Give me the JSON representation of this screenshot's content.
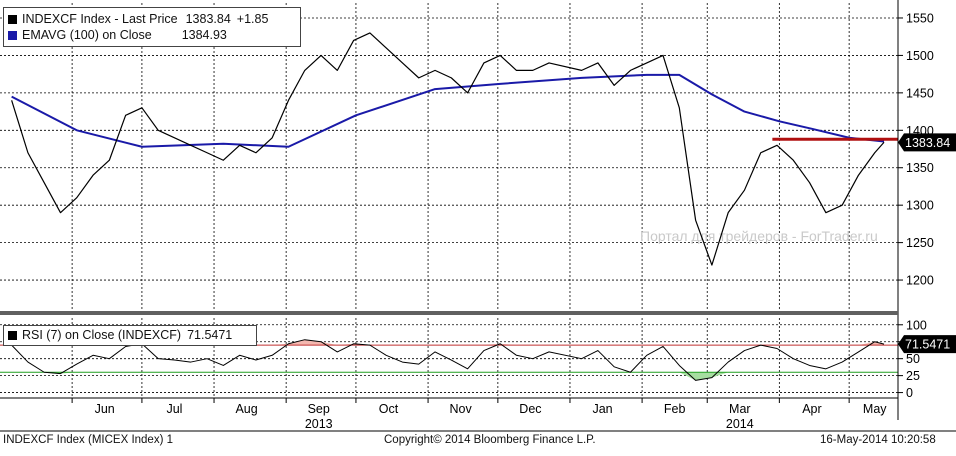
{
  "chart_data": [
    {
      "type": "line",
      "panel": "price",
      "legend": [
        {
          "swatch_color": "#000000",
          "text": "INDEXCF Index - Last Price",
          "value": "1383.84",
          "change": "+1.85"
        },
        {
          "swatch_color": "#1a1aa8",
          "text": "EMAVG (100) on Close",
          "value": "1384.93"
        }
      ],
      "ylim": [
        1160,
        1570
      ],
      "y_ticks": [
        1200,
        1250,
        1300,
        1350,
        1400,
        1450,
        1500,
        1550
      ],
      "last_price_label": "1383.84",
      "resistance_level": 1388,
      "colors": {
        "price": "#000000",
        "ema": "#1a1aa8",
        "resistance": "#b01010",
        "label_bg": "#000000"
      },
      "series": [
        {
          "role": "price",
          "x": [
            "2013-05-06",
            "2013-05-13",
            "2013-05-20",
            "2013-05-27",
            "2013-06-03",
            "2013-06-10",
            "2013-06-17",
            "2013-06-24",
            "2013-07-01",
            "2013-07-08",
            "2013-07-15",
            "2013-07-22",
            "2013-07-29",
            "2013-08-05",
            "2013-08-12",
            "2013-08-19",
            "2013-08-26",
            "2013-09-02",
            "2013-09-09",
            "2013-09-16",
            "2013-09-23",
            "2013-09-30",
            "2013-10-07",
            "2013-10-14",
            "2013-10-21",
            "2013-10-28",
            "2013-11-04",
            "2013-11-11",
            "2013-11-18",
            "2013-11-25",
            "2013-12-02",
            "2013-12-09",
            "2013-12-16",
            "2013-12-23",
            "2014-01-06",
            "2014-01-13",
            "2014-01-20",
            "2014-01-27",
            "2014-02-03",
            "2014-02-10",
            "2014-02-17",
            "2014-02-24",
            "2014-03-03",
            "2014-03-10",
            "2014-03-17",
            "2014-03-24",
            "2014-03-31",
            "2014-04-07",
            "2014-04-14",
            "2014-04-21",
            "2014-04-28",
            "2014-05-05",
            "2014-05-12",
            "2014-05-16"
          ],
          "values": [
            1440,
            1370,
            1330,
            1290,
            1310,
            1340,
            1360,
            1420,
            1430,
            1400,
            1390,
            1380,
            1370,
            1360,
            1380,
            1370,
            1390,
            1440,
            1480,
            1500,
            1480,
            1520,
            1530,
            1510,
            1490,
            1470,
            1480,
            1470,
            1450,
            1490,
            1500,
            1480,
            1480,
            1490,
            1480,
            1490,
            1460,
            1480,
            1490,
            1500,
            1430,
            1280,
            1220,
            1290,
            1320,
            1370,
            1380,
            1360,
            1330,
            1290,
            1300,
            1340,
            1370,
            1384
          ]
        },
        {
          "role": "ema",
          "x": [
            "2013-05-06",
            "2013-06-03",
            "2013-07-01",
            "2013-08-05",
            "2013-09-02",
            "2013-10-01",
            "2013-11-04",
            "2013-12-02",
            "2014-01-06",
            "2014-02-03",
            "2014-02-17",
            "2014-03-03",
            "2014-03-17",
            "2014-04-01",
            "2014-04-15",
            "2014-05-01",
            "2014-05-16"
          ],
          "values": [
            1445,
            1400,
            1378,
            1382,
            1378,
            1420,
            1455,
            1462,
            1470,
            1474,
            1474,
            1448,
            1425,
            1412,
            1402,
            1390,
            1385
          ]
        }
      ]
    },
    {
      "type": "line",
      "panel": "rsi",
      "legend": [
        {
          "swatch_color": "#000000",
          "text": "RSI (7) on Close (INDEXCF)",
          "value": "71.5471"
        }
      ],
      "ylim": [
        -8,
        110
      ],
      "y_ticks": [
        0,
        25,
        50,
        75,
        100
      ],
      "overbought": 70,
      "oversold": 30,
      "last_value_label": "71.5471",
      "colors": {
        "rsi": "#000000",
        "overbought": "#c03030",
        "oversold": "#20a020",
        "overbought_fill": "#f4b8b0",
        "oversold_fill": "#a6dea0"
      },
      "series": [
        {
          "role": "rsi",
          "x": [
            "2013-05-06",
            "2013-05-13",
            "2013-05-20",
            "2013-05-27",
            "2013-06-03",
            "2013-06-10",
            "2013-06-17",
            "2013-06-24",
            "2013-07-01",
            "2013-07-08",
            "2013-07-15",
            "2013-07-22",
            "2013-07-29",
            "2013-08-05",
            "2013-08-12",
            "2013-08-19",
            "2013-08-26",
            "2013-09-02",
            "2013-09-09",
            "2013-09-16",
            "2013-09-23",
            "2013-09-30",
            "2013-10-07",
            "2013-10-14",
            "2013-10-21",
            "2013-10-28",
            "2013-11-04",
            "2013-11-11",
            "2013-11-18",
            "2013-11-25",
            "2013-12-02",
            "2013-12-09",
            "2013-12-16",
            "2013-12-23",
            "2014-01-06",
            "2014-01-13",
            "2014-01-20",
            "2014-01-27",
            "2014-02-03",
            "2014-02-10",
            "2014-02-17",
            "2014-02-24",
            "2014-03-03",
            "2014-03-10",
            "2014-03-17",
            "2014-03-24",
            "2014-03-31",
            "2014-04-07",
            "2014-04-14",
            "2014-04-21",
            "2014-04-28",
            "2014-05-05",
            "2014-05-12",
            "2014-05-16"
          ],
          "values": [
            70,
            45,
            30,
            28,
            42,
            55,
            50,
            68,
            72,
            50,
            48,
            45,
            50,
            40,
            55,
            48,
            55,
            72,
            78,
            75,
            60,
            72,
            70,
            55,
            45,
            42,
            60,
            48,
            35,
            62,
            72,
            55,
            50,
            60,
            50,
            62,
            38,
            30,
            55,
            68,
            40,
            18,
            22,
            45,
            62,
            70,
            65,
            50,
            40,
            35,
            45,
            60,
            75,
            71.5
          ]
        }
      ]
    }
  ],
  "x_axis": {
    "month_labels": [
      {
        "label": "Jun",
        "date": "2013-06-15"
      },
      {
        "label": "Jul",
        "date": "2013-07-15"
      },
      {
        "label": "Aug",
        "date": "2013-08-15"
      },
      {
        "label": "Sep",
        "date": "2013-09-15"
      },
      {
        "label": "Oct",
        "date": "2013-10-15"
      },
      {
        "label": "Nov",
        "date": "2013-11-15"
      },
      {
        "label": "Dec",
        "date": "2013-12-15"
      },
      {
        "label": "Jan",
        "date": "2014-01-15"
      },
      {
        "label": "Feb",
        "date": "2014-02-15"
      },
      {
        "label": "Mar",
        "date": "2014-03-15"
      },
      {
        "label": "Apr",
        "date": "2014-04-15"
      },
      {
        "label": "May",
        "date": "2014-05-12"
      }
    ],
    "year_labels": [
      {
        "label": "2013",
        "date": "2013-09-15"
      },
      {
        "label": "2014",
        "date": "2014-03-15"
      }
    ],
    "range": [
      "2013-05-01",
      "2014-05-22"
    ]
  },
  "watermark": "Портал для трейдеров - ForTrader.ru",
  "footer": {
    "left": "INDEXCF Index (MICEX Index) 1",
    "center": "Copyright© 2014 Bloomberg Finance L.P.",
    "right": "16-May-2014 10:20:58"
  }
}
